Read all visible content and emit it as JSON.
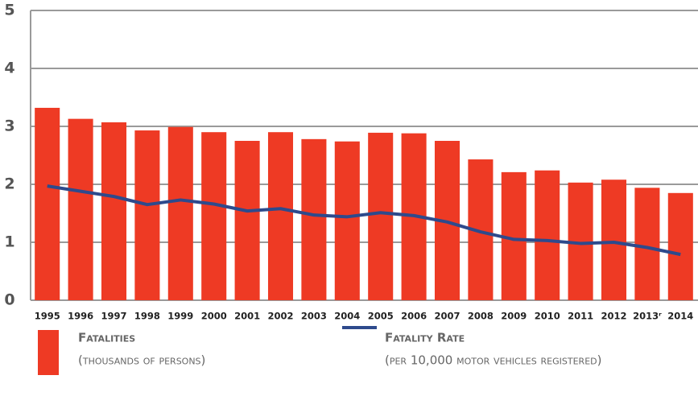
{
  "chart_data": {
    "type": "bar_line",
    "categories": [
      "1995",
      "1996",
      "1997",
      "1998",
      "1999",
      "2000",
      "2001",
      "2002",
      "2003",
      "2004",
      "2005",
      "2006",
      "2007",
      "2008",
      "2009",
      "2010",
      "2011",
      "2012",
      "2013ʳ",
      "2014"
    ],
    "series": [
      {
        "name": "Fatalities",
        "subtitle": "(thousands of persons)",
        "type": "bar",
        "color": "#ee3a24",
        "values": [
          3.32,
          3.13,
          3.07,
          2.93,
          2.99,
          2.9,
          2.75,
          2.9,
          2.78,
          2.74,
          2.89,
          2.88,
          2.75,
          2.43,
          2.21,
          2.24,
          2.03,
          2.08,
          1.94,
          1.85
        ]
      },
      {
        "name": "Fatality Rate",
        "subtitle": "(per 10,000 motor vehicles registered)",
        "type": "line",
        "color": "#2e4a8c",
        "values": [
          1.97,
          1.88,
          1.79,
          1.65,
          1.73,
          1.66,
          1.54,
          1.58,
          1.47,
          1.44,
          1.51,
          1.46,
          1.35,
          1.18,
          1.05,
          1.03,
          0.98,
          1.0,
          0.91,
          0.79
        ]
      }
    ],
    "ylim": [
      0,
      5
    ],
    "yticks": [
      0,
      1,
      2,
      3,
      4,
      5
    ],
    "grid": true
  }
}
